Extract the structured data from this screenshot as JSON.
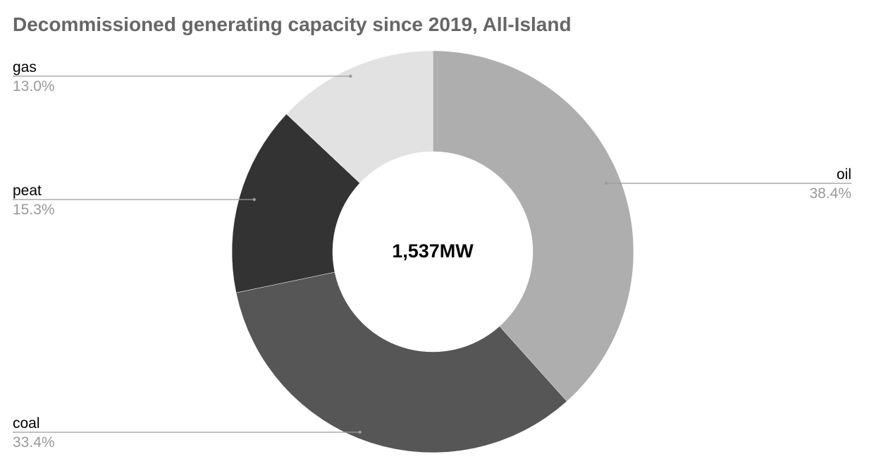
{
  "chart_data": {
    "type": "pie",
    "title": "Decommissioned generating capacity since 2019, All-Island",
    "center_label": "1,537MW",
    "slices": [
      {
        "name": "oil",
        "value": 38.4,
        "label": "38.4%",
        "color": "#aeaeae"
      },
      {
        "name": "coal",
        "value": 33.4,
        "label": "33.4%",
        "color": "#565656"
      },
      {
        "name": "peat",
        "value": 15.3,
        "label": "15.3%",
        "color": "#333333"
      },
      {
        "name": "gas",
        "value": 13.0,
        "label": "13.0%",
        "color": "#e2e2e2"
      }
    ],
    "start_position": "top",
    "direction": "clockwise",
    "donut": true
  }
}
